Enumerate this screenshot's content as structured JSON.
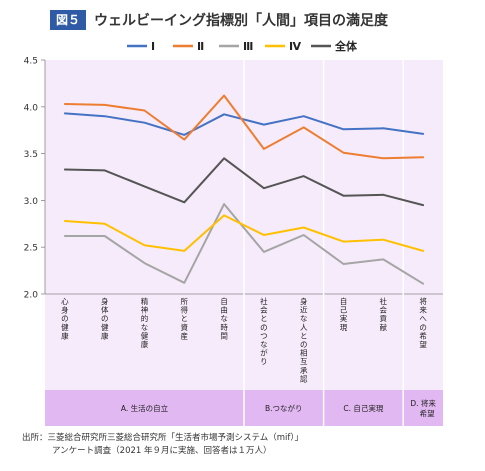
{
  "figure": {
    "badge": "図５",
    "title": "ウェルビーイング指標別「人間」項目の満足度"
  },
  "source": {
    "line1": "出所：三菱総合研究所三菱総合研究所「生活者市場予測システム（mif）」",
    "line2": "アンケート調査（2021 年９月に実施、回答者は１万人）"
  },
  "chart_data": {
    "type": "line",
    "categories": [
      "心身の健康",
      "身体の健康",
      "精神的な健康",
      "所得と資産",
      "自由な時間",
      "社会とのつながり",
      "身近な人との相互承認",
      "自己実現",
      "社会貢献",
      "将来への希望"
    ],
    "groups": [
      {
        "label": "A. 生活の自立",
        "span": [
          0,
          4
        ]
      },
      {
        "label": "B.つながり",
        "span": [
          5,
          6
        ]
      },
      {
        "label": "C. 自己実現",
        "span": [
          7,
          8
        ]
      },
      {
        "label": "D. 将来希望",
        "span": [
          9,
          9
        ]
      }
    ],
    "series": [
      {
        "name": "Ⅰ",
        "color": "#4472c4",
        "values": [
          3.93,
          3.9,
          3.83,
          3.7,
          3.92,
          3.81,
          3.9,
          3.76,
          3.77,
          3.71
        ]
      },
      {
        "name": "Ⅱ",
        "color": "#ed7d31",
        "values": [
          4.03,
          4.02,
          3.96,
          3.65,
          4.12,
          3.55,
          3.78,
          3.51,
          3.45,
          3.46
        ]
      },
      {
        "name": "Ⅲ",
        "color": "#a5a5a5",
        "values": [
          2.62,
          2.62,
          2.33,
          2.12,
          2.96,
          2.45,
          2.63,
          2.32,
          2.37,
          2.11
        ]
      },
      {
        "name": "Ⅳ",
        "color": "#ffc000",
        "values": [
          2.78,
          2.75,
          2.52,
          2.46,
          2.84,
          2.63,
          2.71,
          2.56,
          2.58,
          2.46
        ]
      },
      {
        "name": "全体",
        "color": "#555555",
        "values": [
          3.33,
          3.32,
          3.15,
          2.98,
          3.45,
          3.13,
          3.26,
          3.05,
          3.06,
          2.95
        ]
      }
    ],
    "ylim": [
      2.0,
      4.5
    ],
    "yticks": [
      "2.0",
      "2.5",
      "3.0",
      "3.5",
      "4.0",
      "4.5"
    ],
    "legend": "top",
    "colors": {
      "plot_bg": "#f6ebfa",
      "group_bg": "#e2b8f2",
      "divider": "#ffffff"
    }
  }
}
